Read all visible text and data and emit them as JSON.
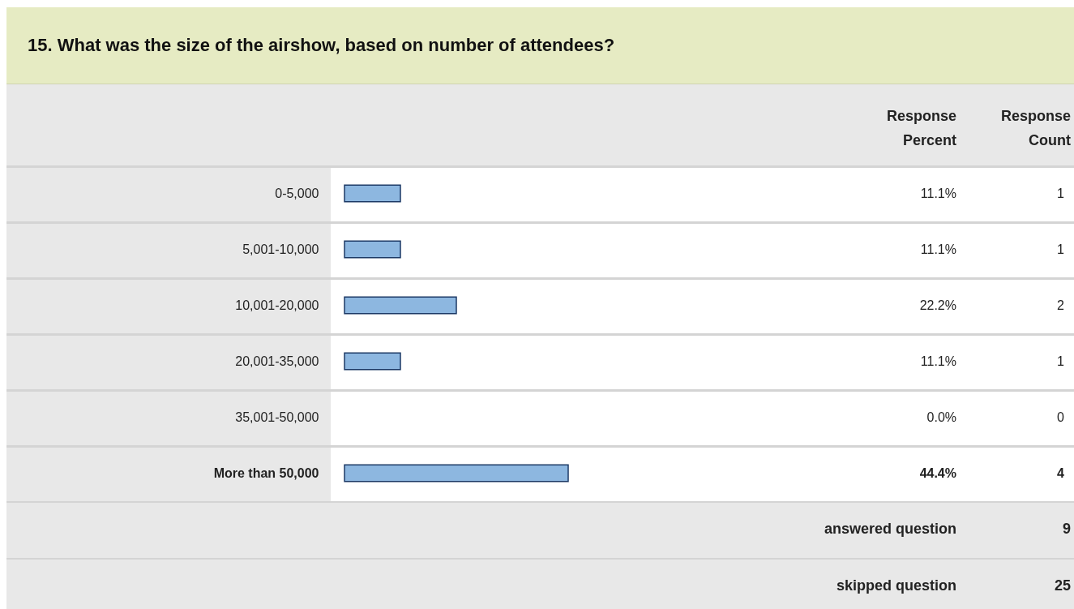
{
  "chart_data": {
    "type": "bar",
    "orientation": "horizontal",
    "title": "15. What was the size of the airshow, based on number of attendees?",
    "categories": [
      "0-5,000",
      "5,001-10,000",
      "10,001-20,000",
      "20,001-35,000",
      "35,001-50,000",
      "More than 50,000"
    ],
    "values": [
      11.1,
      11.1,
      22.2,
      11.1,
      0.0,
      44.4
    ],
    "value_labels": [
      "11.1%",
      "11.1%",
      "22.2%",
      "11.1%",
      "0.0%",
      "44.4%"
    ],
    "color": "#8db7e0",
    "tick_labels": "y",
    "annotations": [
      "Response Percent",
      "Response Count",
      "answered question",
      "9",
      "skipped question",
      "25",
      "1",
      "1",
      "2",
      "1",
      "0",
      "4"
    ]
  }
}
